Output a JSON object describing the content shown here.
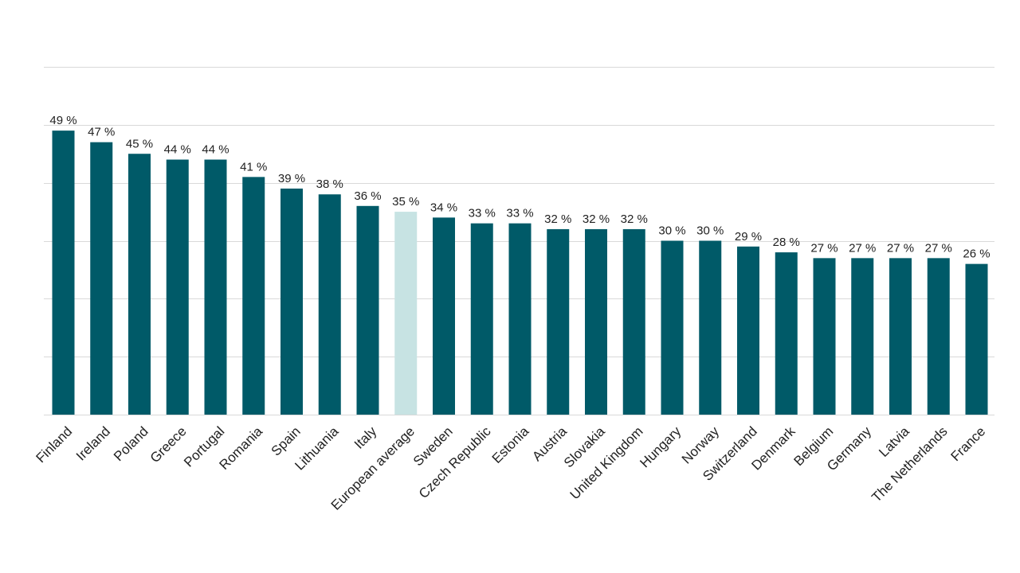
{
  "chart_data": {
    "type": "bar",
    "categories": [
      "Finland",
      "Ireland",
      "Poland",
      "Greece",
      "Portugal",
      "Romania",
      "Spain",
      "Lithuania",
      "Italy",
      "European average",
      "Sweden",
      "Czech Republic",
      "Estonia",
      "Austria",
      "Slovakia",
      "United Kingdom",
      "Hungary",
      "Norway",
      "Switzerland",
      "Denmark",
      "Belgium",
      "Germany",
      "Latvia",
      "The Netherlands",
      "France"
    ],
    "values": [
      49,
      47,
      45,
      44,
      44,
      41,
      39,
      38,
      36,
      35,
      34,
      33,
      33,
      32,
      32,
      32,
      30,
      30,
      29,
      28,
      27,
      27,
      27,
      27,
      26
    ],
    "data_labels": [
      "49 %",
      "47 %",
      "45 %",
      "44 %",
      "44 %",
      "41 %",
      "39 %",
      "38 %",
      "36 %",
      "35 %",
      "34 %",
      "33 %",
      "33 %",
      "32 %",
      "32 %",
      "32 %",
      "30 %",
      "30 %",
      "29 %",
      "28 %",
      "27 %",
      "27 %",
      "27 %",
      "27 %",
      "26 %"
    ],
    "highlight_category": "European average",
    "title": "",
    "xlabel": "",
    "ylabel": "",
    "ylim": [
      0,
      60
    ],
    "grid": true,
    "legend": "none",
    "colors": {
      "bar": "#005a68",
      "highlight": "#c7e3e3",
      "grid": "#d9d9d9",
      "text": "#222222"
    }
  }
}
